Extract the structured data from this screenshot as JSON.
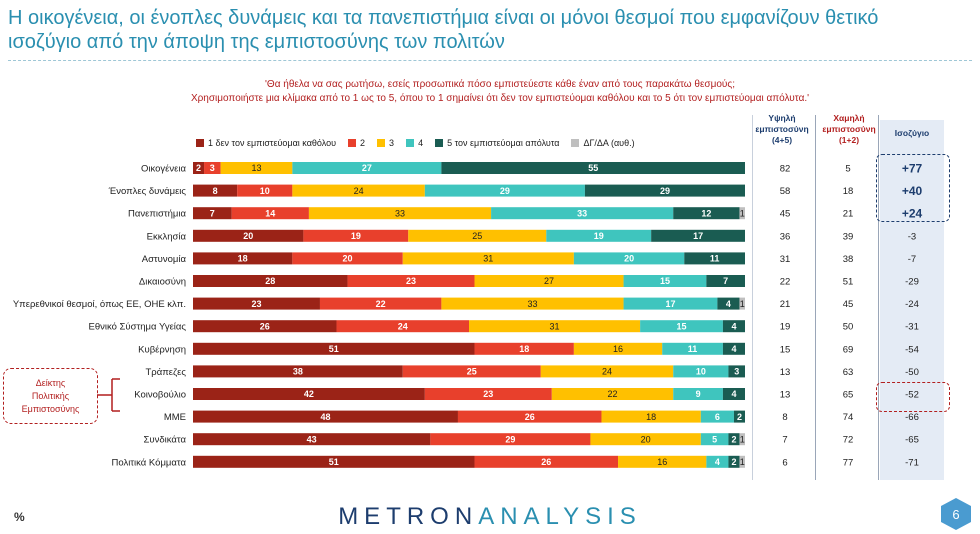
{
  "title_lines": [
    "Η οικογένεια, οι ένοπλες δυνάμεις και τα πανεπιστήμια είναι οι μόνοι θεσμοί που εμφανίζουν θετικό",
    "ισοζύγιο από την άποψη της εμπιστοσύνης των πολιτών"
  ],
  "question_lines": [
    "'Θα ήθελα να σας ρωτήσω, εσείς προσωπικά πόσο εμπιστεύεστε κάθε έναν από τους παρακάτω θεσμούς;",
    "Χρησιμοποιήστε μια κλίμακα από το 1 ως το 5, όπου το 1 σημαίνει ότι δεν τον εμπιστεύομαι καθόλου και το 5 ότι τον εμπιστεύομαι απόλυτα.'"
  ],
  "column_headers": {
    "high": [
      "Υψηλή",
      "εμπιστοσύνη",
      "(4+5)"
    ],
    "low": [
      "Χαμηλή",
      "εμπιστοσύνη",
      "(1+2)"
    ],
    "balance": "Ισοζύγιο"
  },
  "callout_lines": [
    "Δείκτης",
    "Πολιτικής",
    "Εμπιστοσύνης"
  ],
  "percent_sign": "%",
  "logo": {
    "part1": "METRON",
    "part2": "ANALYSIS"
  },
  "page_number": "6",
  "colors": {
    "s1": "#9b2317",
    "s2": "#e8402c",
    "s3": "#ffc000",
    "s4": "#3fc5be",
    "s5": "#1a5c52",
    "na": "#bfbfbf"
  },
  "chart_data": {
    "type": "bar",
    "orientation": "horizontal-stacked-100",
    "legend_position": "top",
    "series": [
      {
        "name": "1 δεν τον εμπιστεύομαι καθόλου",
        "color": "#9b2317"
      },
      {
        "name": "2",
        "color": "#e8402c"
      },
      {
        "name": "3",
        "color": "#ffc000"
      },
      {
        "name": "4",
        "color": "#3fc5be"
      },
      {
        "name": "5 τον εμπιστεύομαι απόλυτα",
        "color": "#1a5c52"
      },
      {
        "name": "ΔΓ/ΔΑ (αυθ.)",
        "color": "#bfbfbf"
      }
    ],
    "categories": [
      "Οικογένεια",
      "Ένοπλες δυνάμεις",
      "Πανεπιστήμια",
      "Εκκλησία",
      "Αστυνομία",
      "Δικαιοσύνη",
      "Υπερεθνικοί θεσμοί, όπως ΕΕ, ΟΗΕ κλπ.",
      "Εθνικό Σύστημα Υγείας",
      "Κυβέρνηση",
      "Τράπεζες",
      "Κοινοβούλιο",
      "ΜΜΕ",
      "Συνδικάτα",
      "Πολιτικά Κόμματα"
    ],
    "values": [
      [
        2,
        3,
        13,
        27,
        55,
        0
      ],
      [
        8,
        10,
        24,
        29,
        29,
        0
      ],
      [
        7,
        14,
        33,
        33,
        12,
        1
      ],
      [
        20,
        19,
        25,
        19,
        17,
        0
      ],
      [
        18,
        20,
        31,
        20,
        11,
        0
      ],
      [
        28,
        23,
        27,
        15,
        7,
        0
      ],
      [
        23,
        22,
        33,
        17,
        4,
        1
      ],
      [
        26,
        24,
        31,
        15,
        4,
        0
      ],
      [
        51,
        18,
        16,
        11,
        4,
        0
      ],
      [
        38,
        25,
        24,
        10,
        3,
        0
      ],
      [
        42,
        23,
        22,
        9,
        4,
        0
      ],
      [
        48,
        26,
        18,
        6,
        2,
        0
      ],
      [
        43,
        29,
        20,
        5,
        2,
        1
      ],
      [
        51,
        26,
        16,
        4,
        2,
        1
      ]
    ],
    "high_trust": [
      82,
      58,
      45,
      36,
      31,
      22,
      21,
      19,
      15,
      13,
      13,
      8,
      7,
      6
    ],
    "low_trust": [
      5,
      18,
      21,
      39,
      38,
      51,
      45,
      50,
      69,
      63,
      65,
      74,
      72,
      77
    ],
    "balance": [
      "+77",
      "+40",
      "+24",
      "-3",
      "-7",
      "-29",
      "-24",
      "-31",
      "-54",
      "-50",
      "-52",
      "-66",
      "-65",
      "-71"
    ],
    "highlight_positive_rows": [
      0,
      1,
      2
    ],
    "highlight_political_row": 10
  }
}
